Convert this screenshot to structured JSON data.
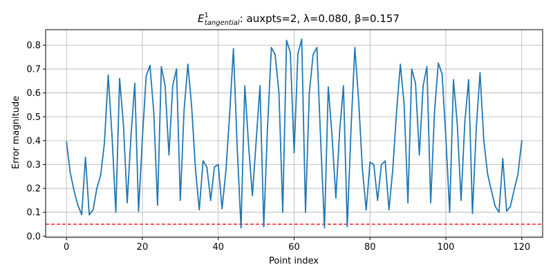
{
  "chart_data": {
    "type": "line",
    "title": {
      "symbol": "E",
      "superscript": "1",
      "subscript": "tangential",
      "rest": ": auxpts=2, λ=0.080, β=0.157"
    },
    "xlabel": "Point index",
    "ylabel": "Error magnitude",
    "xlim": [
      -5.5,
      125.5
    ],
    "ylim": [
      -0.005,
      0.865
    ],
    "x_ticks": [
      0,
      20,
      40,
      60,
      80,
      100,
      120
    ],
    "y_ticks": [
      0.0,
      0.1,
      0.2,
      0.3,
      0.4,
      0.5,
      0.6,
      0.7,
      0.8
    ],
    "grid": true,
    "threshold": {
      "value": 0.05,
      "color": "#ff0000",
      "style": "dashed"
    },
    "series": [
      {
        "color": "#1f77b4",
        "x": [
          0,
          1,
          2,
          3,
          4,
          5,
          6,
          7,
          8,
          9,
          10,
          11,
          12,
          13,
          14,
          15,
          16,
          17,
          18,
          19,
          20,
          21,
          22,
          23,
          24,
          25,
          26,
          27,
          28,
          29,
          30,
          31,
          32,
          33,
          34,
          35,
          36,
          37,
          38,
          39,
          40,
          41,
          42,
          43,
          44,
          45,
          46,
          47,
          48,
          49,
          50,
          51,
          52,
          53,
          54,
          55,
          56,
          57,
          58,
          59,
          60,
          61,
          62,
          63,
          64,
          65,
          66,
          67,
          68,
          69,
          70,
          71,
          72,
          73,
          74,
          75,
          76,
          77,
          78,
          79,
          80,
          81,
          82,
          83,
          84,
          85,
          86,
          87,
          88,
          89,
          90,
          91,
          92,
          93,
          94,
          95,
          96,
          97,
          98,
          99,
          100,
          101,
          102,
          103,
          104,
          105,
          106,
          107,
          108,
          109,
          110,
          111,
          112,
          113,
          114,
          115,
          116,
          117,
          118,
          119,
          120
        ],
        "values": [
          0.395,
          0.265,
          0.19,
          0.13,
          0.09,
          0.33,
          0.09,
          0.11,
          0.2,
          0.255,
          0.39,
          0.675,
          0.42,
          0.1,
          0.66,
          0.47,
          0.14,
          0.42,
          0.64,
          0.105,
          0.41,
          0.67,
          0.715,
          0.52,
          0.13,
          0.71,
          0.63,
          0.34,
          0.63,
          0.7,
          0.15,
          0.53,
          0.72,
          0.54,
          0.28,
          0.11,
          0.315,
          0.29,
          0.15,
          0.29,
          0.3,
          0.115,
          0.27,
          0.51,
          0.785,
          0.37,
          0.035,
          0.63,
          0.38,
          0.17,
          0.4,
          0.63,
          0.04,
          0.46,
          0.79,
          0.76,
          0.6,
          0.1,
          0.82,
          0.77,
          0.35,
          0.765,
          0.825,
          0.1,
          0.6,
          0.76,
          0.79,
          0.4,
          0.035,
          0.625,
          0.42,
          0.16,
          0.44,
          0.63,
          0.04,
          0.45,
          0.79,
          0.57,
          0.28,
          0.11,
          0.31,
          0.3,
          0.15,
          0.3,
          0.315,
          0.11,
          0.28,
          0.52,
          0.72,
          0.55,
          0.14,
          0.7,
          0.64,
          0.34,
          0.63,
          0.71,
          0.14,
          0.52,
          0.725,
          0.68,
          0.41,
          0.1,
          0.655,
          0.47,
          0.15,
          0.48,
          0.655,
          0.095,
          0.45,
          0.685,
          0.4,
          0.26,
          0.19,
          0.125,
          0.1,
          0.325,
          0.105,
          0.125,
          0.195,
          0.26,
          0.4
        ]
      }
    ]
  }
}
